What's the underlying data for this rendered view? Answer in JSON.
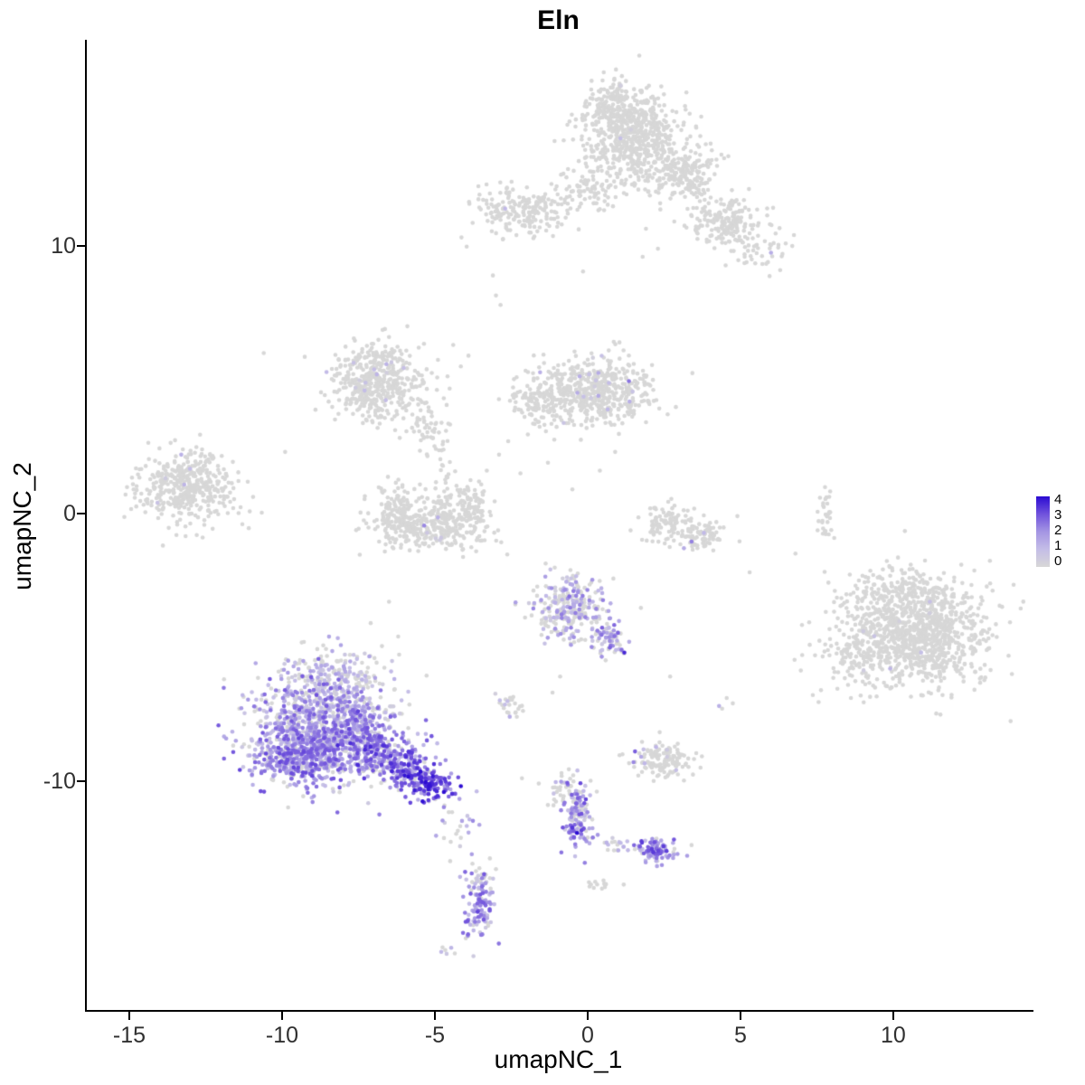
{
  "title": "Eln",
  "colors": {
    "background": "#ffffff",
    "axis": "#000000",
    "tick_text": "#303030",
    "gray_point": "#d7d7d7",
    "gradient_stops": [
      "#d7d7d7",
      "#c4bde7",
      "#a495e3",
      "#7052dc",
      "#2b0bd2"
    ]
  },
  "chart_data": {
    "type": "scatter",
    "title": "Eln",
    "xlabel": "umapNC_1",
    "ylabel": "umapNC_2",
    "xlim": [
      -16.42,
      14.5
    ],
    "ylim": [
      -18.6,
      17.68
    ],
    "grid": false,
    "x_ticks": {
      "values": [
        -15,
        -10,
        -5,
        0,
        5,
        10
      ],
      "labels": [
        "-15",
        "-10",
        "-5",
        "0",
        "5",
        "10"
      ]
    },
    "y_ticks": {
      "values": [
        -10,
        0,
        10
      ],
      "labels": [
        "-10",
        "0",
        "10"
      ]
    },
    "color_scale": {
      "encodes": "Eln expression level",
      "min": 0,
      "max": 4,
      "tick_labels": [
        "4",
        "3",
        "2",
        "1",
        "0"
      ],
      "legend_position": "right"
    },
    "clusters": [
      {
        "name": "top-main",
        "n": 600,
        "cx": 1.5,
        "cy": 14.0,
        "sx": 0.85,
        "sy": 0.85,
        "f": 0.004,
        "lo": 0.3,
        "hi": 1.0
      },
      {
        "name": "top-upper",
        "n": 150,
        "cx": 1.0,
        "cy": 15.2,
        "sx": 0.6,
        "sy": 0.45,
        "f": 0,
        "lo": 0,
        "hi": 0
      },
      {
        "name": "top-right-ext",
        "n": 200,
        "cx": 3.1,
        "cy": 12.7,
        "sx": 0.65,
        "sy": 0.55,
        "f": 0,
        "lo": 0,
        "hi": 0
      },
      {
        "name": "top-right-cluster",
        "n": 180,
        "cx": 4.5,
        "cy": 11.0,
        "sx": 0.6,
        "sy": 0.45,
        "f": 0.005,
        "lo": 0.3,
        "hi": 1.2
      },
      {
        "name": "top-right-trail",
        "n": 50,
        "cx": 5.4,
        "cy": 9.9,
        "sx": 0.5,
        "sy": 0.4,
        "f": 0.02,
        "lo": 0.3,
        "hi": 1.2
      },
      {
        "name": "top-left-bridge",
        "n": 60,
        "cx": 0.1,
        "cy": 12.0,
        "sx": 0.5,
        "sy": 0.35,
        "f": 0,
        "lo": 0,
        "hi": 0
      },
      {
        "name": "upper-left-blob",
        "n": 210,
        "cx": -2.1,
        "cy": 11.3,
        "sx": 0.85,
        "sy": 0.45,
        "f": 0.01,
        "lo": 0.3,
        "hi": 1.1
      },
      {
        "name": "midleft",
        "n": 460,
        "cx": -6.9,
        "cy": 4.9,
        "sx": 0.8,
        "sy": 0.7,
        "f": 0.03,
        "lo": 0.3,
        "hi": 1.3
      },
      {
        "name": "midleft-arm",
        "n": 45,
        "cx": -5.3,
        "cy": 3.2,
        "sx": 0.3,
        "sy": 0.5,
        "f": 0,
        "lo": 0,
        "hi": 0
      },
      {
        "name": "midleft-lower-trail",
        "n": 28,
        "cx": -4.75,
        "cy": 1.7,
        "sx": 0.2,
        "sy": 0.75,
        "f": 0,
        "lo": 0,
        "hi": 0
      },
      {
        "name": "center-mid",
        "n": 540,
        "cx": 0.2,
        "cy": 4.6,
        "sx": 1.0,
        "sy": 0.62,
        "f": 0.02,
        "lo": 0.3,
        "hi": 1.5
      },
      {
        "name": "center-mid-left-arm",
        "n": 100,
        "cx": -1.6,
        "cy": 4.1,
        "sx": 0.45,
        "sy": 0.4,
        "f": 0,
        "lo": 0,
        "hi": 0
      },
      {
        "name": "crescent-bottom",
        "n": 300,
        "cx": -5.1,
        "cy": -0.55,
        "sx": 1.0,
        "sy": 0.4,
        "f": 0.02,
        "lo": 0.3,
        "hi": 1.3
      },
      {
        "name": "crescent-left-arm",
        "n": 90,
        "cx": -6.25,
        "cy": 0.3,
        "sx": 0.3,
        "sy": 0.5,
        "f": 0,
        "lo": 0,
        "hi": 0
      },
      {
        "name": "crescent-right-arm",
        "n": 90,
        "cx": -3.8,
        "cy": 0.2,
        "sx": 0.3,
        "sy": 0.45,
        "f": 0,
        "lo": 0,
        "hi": 0
      },
      {
        "name": "crescent-inner",
        "n": 40,
        "cx": -5.0,
        "cy": 0.2,
        "sx": 0.5,
        "sy": 0.3,
        "f": 0,
        "lo": 0,
        "hi": 0
      },
      {
        "name": "far-left-oval",
        "n": 430,
        "cx": -13.1,
        "cy": 1.0,
        "sx": 0.85,
        "sy": 0.62,
        "f": 0.008,
        "lo": 0.3,
        "hi": 1.2
      },
      {
        "name": "rightmid-crescent-a",
        "n": 90,
        "cx": 2.6,
        "cy": -0.35,
        "sx": 0.4,
        "sy": 0.35,
        "f": 0,
        "lo": 0,
        "hi": 0
      },
      {
        "name": "rightmid-crescent-b",
        "n": 90,
        "cx": 3.6,
        "cy": -0.8,
        "sx": 0.45,
        "sy": 0.3,
        "f": 0.02,
        "lo": 0.4,
        "hi": 1.4
      },
      {
        "name": "right-vertical-line",
        "n": 30,
        "cx": 7.8,
        "cy": -0.1,
        "sx": 0.13,
        "sy": 0.55,
        "f": 0,
        "lo": 0,
        "hi": 0
      },
      {
        "name": "bigright-main",
        "n": 1000,
        "cx": 10.8,
        "cy": -4.5,
        "sx": 1.15,
        "sy": 0.98,
        "f": 0.004,
        "lo": 0.3,
        "hi": 1.2
      },
      {
        "name": "bigright-left-scatter",
        "n": 130,
        "cx": 8.9,
        "cy": -5.1,
        "sx": 0.65,
        "sy": 0.85,
        "f": 0.01,
        "lo": 0.3,
        "hi": 1.0
      },
      {
        "name": "bigright-top",
        "n": 140,
        "cx": 10.3,
        "cy": -2.95,
        "sx": 0.85,
        "sy": 0.4,
        "f": 0,
        "lo": 0,
        "hi": 0
      },
      {
        "name": "centerlow-mixed",
        "n": 270,
        "cx": -0.55,
        "cy": -3.55,
        "sx": 0.62,
        "sy": 0.62,
        "f": 0.45,
        "lo": 0.3,
        "hi": 2.4
      },
      {
        "name": "centerlow-tail",
        "n": 70,
        "cx": 0.65,
        "cy": -4.75,
        "sx": 0.3,
        "sy": 0.38,
        "f": 0.6,
        "lo": 0.5,
        "hi": 2.8
      },
      {
        "name": "tiny-pair-a",
        "n": 14,
        "cx": -2.7,
        "cy": -7.05,
        "sx": 0.2,
        "sy": 0.15,
        "f": 0.1,
        "lo": 0.3,
        "hi": 1.0
      },
      {
        "name": "tiny-pair-b",
        "n": 10,
        "cx": -2.3,
        "cy": -7.35,
        "sx": 0.15,
        "sy": 0.12,
        "f": 0,
        "lo": 0,
        "hi": 0
      },
      {
        "name": "main-expr-top",
        "n": 210,
        "cx": -8.3,
        "cy": -6.1,
        "sx": 0.95,
        "sy": 0.5,
        "f": 0.55,
        "lo": 0.3,
        "hi": 1.8
      },
      {
        "name": "main-expr-core",
        "n": 850,
        "cx": -8.9,
        "cy": -8.1,
        "sx": 1.05,
        "sy": 0.95,
        "f": 0.78,
        "lo": 0.4,
        "hi": 3.0
      },
      {
        "name": "main-expr-bottom",
        "n": 300,
        "cx": -9.5,
        "cy": -9.2,
        "sx": 0.75,
        "sy": 0.45,
        "f": 0.85,
        "lo": 0.8,
        "hi": 3.2
      },
      {
        "name": "main-expr-rightmid",
        "n": 250,
        "cx": -7.4,
        "cy": -8.2,
        "sx": 0.6,
        "sy": 0.7,
        "f": 0.8,
        "lo": 0.5,
        "hi": 3.0
      },
      {
        "name": "main-expr-tail",
        "n": 320,
        "cx": -6.3,
        "cy": -9.3,
        "sx": 1.0,
        "sy": 0.42,
        "a": -35,
        "f": 0.88,
        "lo": 1.0,
        "hi": 3.6
      },
      {
        "name": "main-expr-tail-tip",
        "n": 90,
        "cx": -5.25,
        "cy": -10.1,
        "sx": 0.4,
        "sy": 0.3,
        "f": 0.95,
        "lo": 2.0,
        "hi": 4.0
      },
      {
        "name": "below-tail-sparse",
        "n": 20,
        "cx": -4.3,
        "cy": -11.7,
        "sx": 0.35,
        "sy": 0.55,
        "f": 0.5,
        "lo": 0.3,
        "hi": 2.0
      },
      {
        "name": "lowright-small",
        "n": 140,
        "cx": 2.4,
        "cy": -9.2,
        "sx": 0.5,
        "sy": 0.33,
        "f": 0.05,
        "lo": 0.3,
        "hi": 1.2
      },
      {
        "name": "vert-streak",
        "n": 130,
        "cx": -0.35,
        "cy": -11.3,
        "sx": 0.22,
        "sy": 0.62,
        "f": 0.75,
        "lo": 0.5,
        "hi": 3.2
      },
      {
        "name": "vert-streak-upper-trail",
        "n": 25,
        "cx": -0.85,
        "cy": -10.35,
        "sx": 0.22,
        "sy": 0.3,
        "f": 0.3,
        "lo": 0.3,
        "hi": 1.5
      },
      {
        "name": "streak-to-island-trail",
        "n": 22,
        "cx": 0.9,
        "cy": -12.35,
        "sx": 0.5,
        "sy": 0.15,
        "a": -10,
        "f": 0.5,
        "lo": 0.3,
        "hi": 2.0
      },
      {
        "name": "low-island",
        "n": 90,
        "cx": 2.15,
        "cy": -12.6,
        "sx": 0.32,
        "sy": 0.26,
        "f": 0.85,
        "lo": 0.8,
        "hi": 3.4
      },
      {
        "name": "bottom-streak",
        "n": 110,
        "cx": -3.55,
        "cy": -14.7,
        "sx": 0.22,
        "sy": 0.62,
        "f": 0.8,
        "lo": 0.5,
        "hi": 3.0
      },
      {
        "name": "bottom-streak-top",
        "n": 15,
        "cx": -3.45,
        "cy": -13.7,
        "sx": 0.18,
        "sy": 0.25,
        "f": 0.4,
        "lo": 0.3,
        "hi": 1.5
      },
      {
        "name": "tiny-gray-bottom",
        "n": 12,
        "cx": 0.45,
        "cy": -13.9,
        "sx": 0.28,
        "sy": 0.12,
        "f": 0,
        "lo": 0,
        "hi": 0
      },
      {
        "name": "tiny-bottom-left",
        "n": 6,
        "cx": -4.65,
        "cy": -16.35,
        "sx": 0.15,
        "sy": 0.15,
        "f": 0.3,
        "lo": 0.3,
        "hi": 1.2
      }
    ],
    "singles": [
      [
        -10.6,
        6.0
      ],
      [
        -3.1,
        8.9
      ],
      [
        -3.0,
        8.15
      ],
      [
        -2.85,
        7.8
      ],
      [
        -0.15,
        9.05
      ],
      [
        -5.9,
        7.0
      ],
      [
        -6.5,
        6.6
      ],
      [
        -4.4,
        6.3
      ],
      [
        -3.9,
        5.9
      ],
      [
        -4.15,
        5.5
      ],
      [
        -2.6,
        2.7
      ],
      [
        -2.9,
        2.2
      ],
      [
        -3.3,
        1.6
      ],
      [
        -2.2,
        1.5
      ],
      [
        -1.3,
        1.9
      ],
      [
        0.9,
        2.3
      ],
      [
        1.8,
        9.6
      ],
      [
        2.3,
        9.9
      ],
      [
        5.9,
        9.4
      ],
      [
        6.3,
        9.1
      ],
      [
        -11.3,
        -0.4
      ],
      [
        -11.6,
        0.2
      ],
      [
        4.9,
        -0.1
      ],
      [
        5.3,
        -2.2
      ],
      [
        6.8,
        -1.5
      ],
      [
        -6.5,
        -3.3
      ],
      [
        -7.1,
        -4.1
      ],
      [
        -6.2,
        -4.6
      ],
      [
        4.4,
        -7.3
      ],
      [
        4.75,
        -7.1
      ],
      [
        4.55,
        -6.9
      ],
      [
        2.7,
        -6.1
      ],
      [
        -11.9,
        -6.2
      ],
      [
        -11.4,
        -7.3
      ],
      [
        -0.9,
        -6.1
      ],
      [
        -1.15,
        -6.7
      ],
      [
        -2.15,
        -9.9
      ],
      [
        -1.6,
        -10.1
      ],
      [
        0.3,
        -10.4
      ],
      [
        -3.2,
        -12.9
      ],
      [
        -3.0,
        -13.3
      ],
      [
        0.2,
        -14.0
      ],
      [
        -4.5,
        -13.0
      ],
      [
        3.4,
        -12.4
      ],
      [
        -13.9,
        -1.2
      ],
      [
        -12.6,
        -0.9
      ],
      [
        -9.9,
        2.3
      ],
      [
        -0.5,
        0.9
      ],
      [
        0.4,
        1.6
      ]
    ],
    "accents": [
      [
        1.35,
        4.95,
        2.5
      ],
      [
        0.35,
        4.4,
        1.5
      ],
      [
        -2.7,
        11.4,
        1.1
      ],
      [
        6.0,
        9.75,
        1.4
      ],
      [
        -13.3,
        2.2,
        1.3
      ],
      [
        -5.35,
        -0.45,
        2.2
      ],
      [
        -4.9,
        -0.15,
        1.3
      ],
      [
        3.4,
        -1.05,
        2.3
      ],
      [
        3.15,
        -1.3,
        1.4
      ],
      [
        9.9,
        -5.8,
        1.2
      ],
      [
        11.2,
        -3.3,
        0.9
      ],
      [
        -0.6,
        -3.1,
        2.6
      ],
      [
        1.2,
        -5.2,
        3.6
      ],
      [
        -2.55,
        -7.6,
        1.4
      ],
      [
        4.3,
        -7.2,
        1.3
      ],
      [
        1.55,
        -8.9,
        2.8
      ],
      [
        1.5,
        -9.3,
        2.2
      ],
      [
        1.75,
        -9.1,
        1.5
      ],
      [
        -0.35,
        -11.95,
        4.0
      ],
      [
        -0.5,
        -11.75,
        3.4
      ],
      [
        -0.2,
        -11.85,
        3.2
      ],
      [
        -0.45,
        -12.1,
        2.8
      ],
      [
        2.1,
        -12.55,
        3.3
      ],
      [
        2.3,
        -12.7,
        2.9
      ],
      [
        -3.6,
        -14.9,
        3.2
      ],
      [
        -3.5,
        -14.5,
        2.8
      ],
      [
        -5.3,
        -10.05,
        4.0
      ],
      [
        -5.15,
        -10.2,
        3.8
      ],
      [
        -5.45,
        -9.9,
        3.6
      ],
      [
        -6.9,
        5.2,
        1.2
      ],
      [
        -7.3,
        4.6,
        1.0
      ]
    ]
  }
}
